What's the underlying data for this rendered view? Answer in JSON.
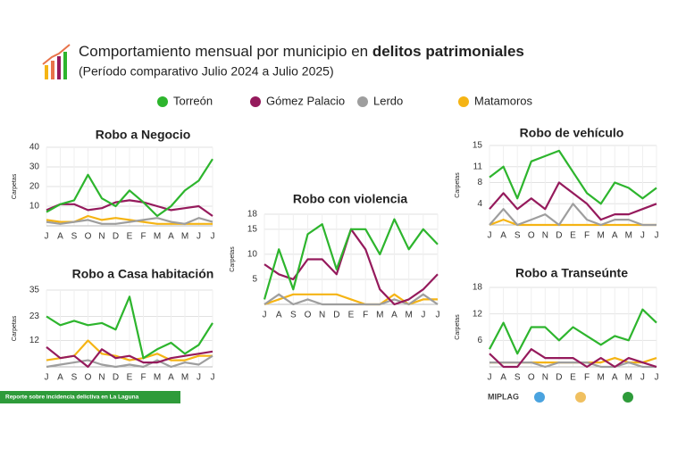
{
  "header": {
    "title": "Comportamiento mensual por municipio en",
    "title_bold": "delitos patrimoniales",
    "subtitle": "(Período comparativo Julio 2024 a Julio 2025)"
  },
  "legend": [
    {
      "name": "Torreón",
      "color": "#2db52d"
    },
    {
      "name": "Gómez Palacio",
      "color": "#951a5c"
    },
    {
      "name": "Lerdo",
      "color": "#9e9e9e"
    },
    {
      "name": "Matamoros",
      "color": "#f5b414"
    }
  ],
  "footer": {
    "note": "Reporte sobre incidencia delictiva en La Laguna",
    "logo": "MIPLAG"
  },
  "chart_data": [
    {
      "type": "line",
      "title": "Robo a Negocio",
      "ylabel": "Carpetas",
      "categories": [
        "J",
        "A",
        "S",
        "O",
        "N",
        "D",
        "E",
        "F",
        "M",
        "A",
        "M",
        "J",
        "J"
      ],
      "ylim": [
        0,
        40
      ],
      "yticks": [
        10,
        20,
        30,
        40
      ],
      "grid": true,
      "series": [
        {
          "values": [
            7,
            11,
            13,
            26,
            14,
            10,
            18,
            12,
            5,
            10,
            18,
            23,
            34
          ]
        },
        {
          "values": [
            8,
            11,
            11,
            8,
            9,
            12,
            13,
            12,
            10,
            8,
            9,
            10,
            5
          ]
        },
        {
          "values": [
            2,
            1,
            2,
            3,
            1,
            1,
            2,
            3,
            4,
            2,
            1,
            4,
            2
          ]
        },
        {
          "values": [
            3,
            2,
            2,
            5,
            3,
            4,
            3,
            2,
            1,
            1,
            1,
            1,
            1
          ]
        }
      ]
    },
    {
      "type": "line",
      "title": "Robo a Casa habitación",
      "ylabel": "Carpetas",
      "categories": [
        "J",
        "A",
        "S",
        "O",
        "N",
        "D",
        "E",
        "F",
        "M",
        "A",
        "M",
        "J",
        "J"
      ],
      "ylim": [
        0,
        35
      ],
      "yticks": [
        12,
        23,
        35
      ],
      "grid": true,
      "series": [
        {
          "values": [
            23,
            19,
            21,
            19,
            20,
            17,
            32,
            4,
            8,
            11,
            6,
            10,
            20
          ]
        },
        {
          "values": [
            9,
            4,
            5,
            0,
            8,
            4,
            5,
            2,
            2,
            4,
            5,
            6,
            7
          ]
        },
        {
          "values": [
            0,
            1,
            2,
            3,
            1,
            0,
            1,
            0,
            3,
            0,
            2,
            1,
            5
          ]
        },
        {
          "values": [
            3,
            4,
            5,
            12,
            6,
            5,
            3,
            4,
            6,
            3,
            3,
            5,
            5
          ]
        }
      ]
    },
    {
      "type": "line",
      "title": "Robo con violencia",
      "ylabel": "Carpetas",
      "categories": [
        "J",
        "A",
        "S",
        "O",
        "N",
        "D",
        "E",
        "F",
        "M",
        "A",
        "M",
        "J",
        "J"
      ],
      "ylim": [
        0,
        18
      ],
      "yticks": [
        5,
        10,
        15,
        18
      ],
      "grid": true,
      "series": [
        {
          "values": [
            1,
            11,
            3,
            14,
            16,
            7,
            15,
            15,
            10,
            17,
            11,
            15,
            12
          ]
        },
        {
          "values": [
            8,
            6,
            5,
            9,
            9,
            6,
            15,
            11,
            3,
            0,
            1,
            3,
            6
          ]
        },
        {
          "values": [
            0,
            2,
            0,
            1,
            0,
            0,
            0,
            0,
            0,
            1,
            0,
            2,
            0
          ]
        },
        {
          "values": [
            0,
            1,
            2,
            2,
            2,
            2,
            1,
            0,
            0,
            2,
            0,
            1,
            1
          ]
        }
      ]
    },
    {
      "type": "line",
      "title": "Robo de vehículo",
      "ylabel": "Carpetas",
      "categories": [
        "J",
        "A",
        "S",
        "O",
        "N",
        "D",
        "E",
        "F",
        "M",
        "A",
        "M",
        "J",
        "J"
      ],
      "ylim": [
        0,
        15
      ],
      "yticks": [
        4,
        8,
        11,
        15
      ],
      "grid": true,
      "series": [
        {
          "values": [
            9,
            11,
            5,
            12,
            13,
            14,
            10,
            6,
            4,
            8,
            7,
            5,
            7
          ]
        },
        {
          "values": [
            3,
            6,
            3,
            5,
            3,
            8,
            6,
            4,
            1,
            2,
            2,
            3,
            4
          ]
        },
        {
          "values": [
            0,
            3,
            0,
            1,
            2,
            0,
            4,
            1,
            0,
            1,
            1,
            0,
            0
          ]
        },
        {
          "values": [
            0,
            1,
            0,
            0,
            0,
            0,
            0,
            0,
            0,
            0,
            0,
            0,
            0
          ]
        }
      ]
    },
    {
      "type": "line",
      "title": "Robo a Transeúnte",
      "ylabel": "Carpetas",
      "categories": [
        "J",
        "A",
        "S",
        "O",
        "N",
        "D",
        "E",
        "F",
        "M",
        "A",
        "M",
        "J",
        "J"
      ],
      "ylim": [
        0,
        18
      ],
      "yticks": [
        6,
        12,
        18
      ],
      "grid": true,
      "series": [
        {
          "values": [
            4,
            10,
            3,
            9,
            9,
            6,
            9,
            7,
            5,
            7,
            6,
            13,
            10
          ]
        },
        {
          "values": [
            3,
            0,
            0,
            4,
            2,
            2,
            2,
            0,
            2,
            0,
            2,
            1,
            0
          ]
        },
        {
          "values": [
            1,
            1,
            1,
            1,
            0,
            1,
            1,
            1,
            0,
            0,
            1,
            0,
            0
          ]
        },
        {
          "values": [
            1,
            1,
            1,
            1,
            1,
            1,
            1,
            1,
            1,
            2,
            1,
            1,
            2
          ]
        }
      ]
    }
  ]
}
